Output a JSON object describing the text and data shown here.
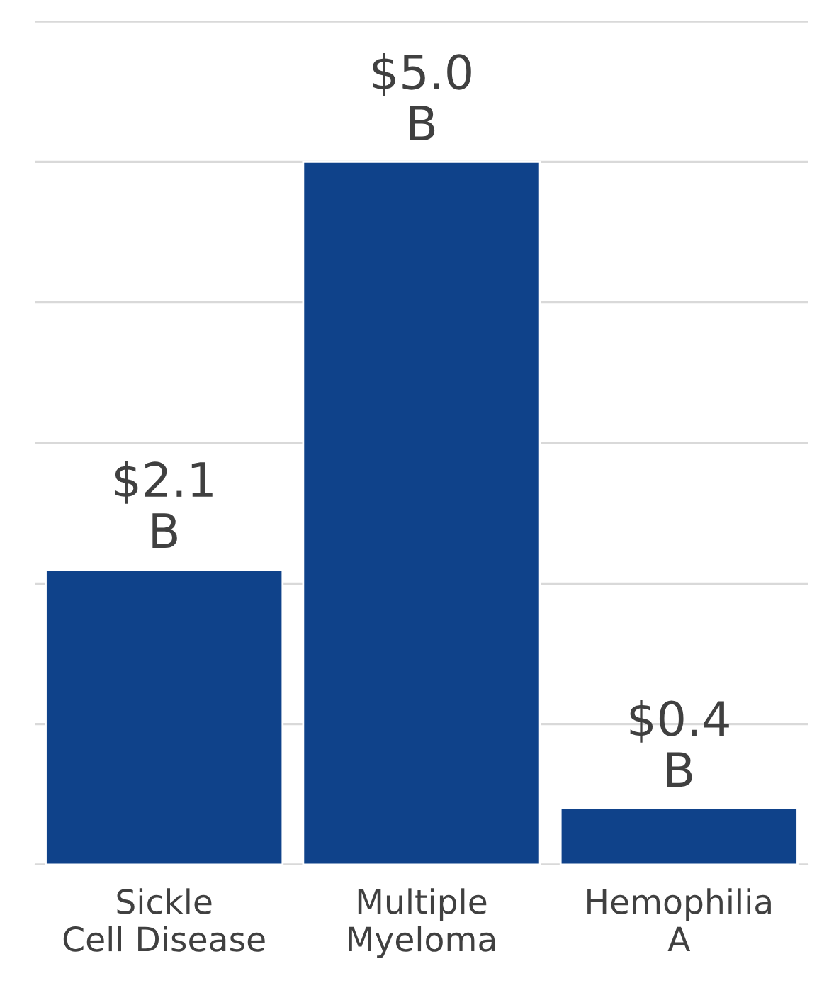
{
  "chart_data": {
    "type": "bar",
    "categories": [
      "Sickle Cell Disease",
      "Multiple Myeloma",
      "Hemophilia A"
    ],
    "values": [
      2.1,
      5.0,
      0.4
    ],
    "color": "#0f428a",
    "value_labels": [
      "$2.1 B",
      "$5.0 B",
      "$0.4 B"
    ],
    "ylim": [
      0,
      6
    ],
    "yticks": [
      {
        "value": 0,
        "label": null
      },
      {
        "value": 1,
        "label": null
      },
      {
        "value": 2,
        "label": null
      },
      {
        "value": 3,
        "label": null
      },
      {
        "value": 4,
        "label": null
      },
      {
        "value": 5,
        "label": null
      },
      {
        "value": 6,
        "label": null
      }
    ],
    "grid": "y",
    "tick_labels": "x",
    "legend": false
  }
}
